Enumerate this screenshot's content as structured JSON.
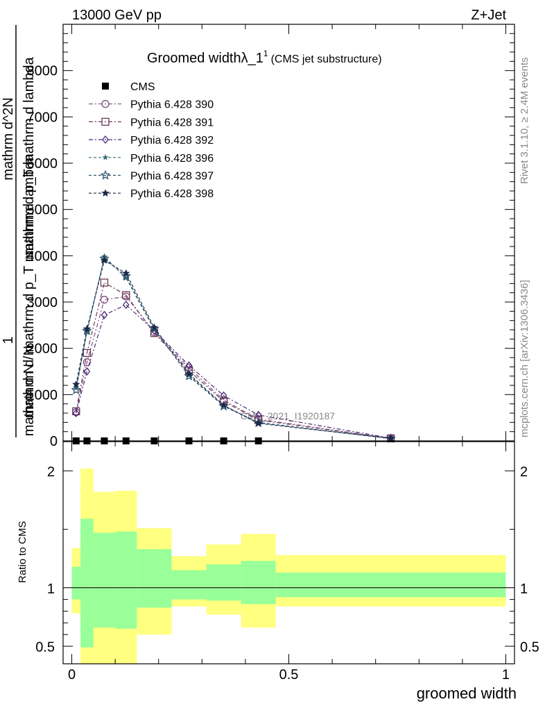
{
  "header": {
    "left": "13000 GeV pp",
    "right": "Z+Jet"
  },
  "side_labels": {
    "rivet": "Rivet 3.1.10, ≥ 2.4M events",
    "mcplots": "mcplots.cern.ch [arXiv:1306.3436]"
  },
  "watermark": "CMS_2021_I1920187",
  "title": {
    "main": "Groomed widthλ_1",
    "sup": "1",
    "sub": "(CMS jet substructure)"
  },
  "colors": {
    "band_outer": "#ffff80",
    "band_inner": "#99ff99",
    "p390": "#7e4f7e",
    "p391": "#6b3a55",
    "p392": "#4b2a78",
    "p396": "#3d6b7a",
    "p397": "#2f5570",
    "p398": "#1b2a48",
    "data": "#000000"
  },
  "chart_data": [
    {
      "type": "line",
      "panel": "main",
      "title": "Groomed widthλ_1^1 (CMS jet substructure)",
      "ylabel": {
        "fraction_num": "1",
        "fraction_den": "mathrm d N",
        "middle": "mathrm d^2N",
        "middle_den": "mathrm d p_T mathrm d lambda",
        "denominator": "mathrm d N / mathrm d p_T mathrm d lambda"
      },
      "xlim": [
        -0.02,
        1.02
      ],
      "ylim": [
        0,
        9000
      ],
      "yticks": [
        0,
        1000,
        2000,
        3000,
        4000,
        5000,
        6000,
        7000,
        8000
      ],
      "ytick_labels": [
        "0",
        "1000",
        "2000",
        "3000",
        "4000",
        "5000",
        "6000",
        "7000",
        "8000"
      ],
      "legend_position": "top-left",
      "series": [
        {
          "name": "CMS",
          "marker": "square",
          "x": [
            0.01,
            0.035,
            0.075,
            0.125,
            0.19,
            0.27,
            0.35,
            0.43
          ],
          "y": [
            0,
            0,
            0,
            0,
            0,
            0,
            0,
            0
          ]
        },
        {
          "name": "Pythia 6.428 390",
          "marker": "circle-open",
          "color": "#7e4f7e",
          "x": [
            0.01,
            0.035,
            0.075,
            0.125,
            0.19,
            0.27,
            0.35,
            0.43,
            0.735
          ],
          "y": [
            620,
            1700,
            3050,
            3120,
            2350,
            1580,
            880,
            470,
            55
          ]
        },
        {
          "name": "Pythia 6.428 391",
          "marker": "square-open",
          "color": "#6b3a55",
          "x": [
            0.01,
            0.035,
            0.075,
            0.125,
            0.19,
            0.27,
            0.35,
            0.43,
            0.735
          ],
          "y": [
            640,
            1900,
            3420,
            3150,
            2330,
            1520,
            850,
            450,
            55
          ]
        },
        {
          "name": "Pythia 6.428 392",
          "marker": "diamond-open",
          "color": "#4b2a78",
          "x": [
            0.01,
            0.035,
            0.075,
            0.125,
            0.19,
            0.27,
            0.35,
            0.43,
            0.735
          ],
          "y": [
            600,
            1500,
            2720,
            2940,
            2380,
            1630,
            980,
            560,
            60
          ]
        },
        {
          "name": "Pythia 6.428 396",
          "marker": "star-small",
          "color": "#3d6b7a",
          "x": [
            0.01,
            0.035,
            0.075,
            0.125,
            0.19,
            0.27,
            0.35,
            0.43,
            0.735
          ],
          "y": [
            1150,
            2350,
            3980,
            3520,
            2400,
            1420,
            760,
            400,
            50
          ]
        },
        {
          "name": "Pythia 6.428 397",
          "marker": "star-open",
          "color": "#2f5570",
          "x": [
            0.01,
            0.035,
            0.075,
            0.125,
            0.19,
            0.27,
            0.35,
            0.43,
            0.735
          ],
          "y": [
            1100,
            2380,
            3940,
            3560,
            2420,
            1400,
            750,
            390,
            50
          ]
        },
        {
          "name": "Pythia 6.428 398",
          "marker": "triangle-down",
          "color": "#1b2a48",
          "x": [
            0.01,
            0.035,
            0.075,
            0.125,
            0.19,
            0.27,
            0.35,
            0.43,
            0.735
          ],
          "y": [
            1220,
            2420,
            3900,
            3620,
            2450,
            1450,
            770,
            380,
            55
          ]
        }
      ]
    },
    {
      "type": "area",
      "panel": "ratio",
      "ylabel": "Ratio to CMS",
      "xlabel": "groomed width",
      "xlim": [
        -0.02,
        1.02
      ],
      "ylim": [
        0.35,
        2.25
      ],
      "yticks": [
        0.5,
        1,
        2
      ],
      "ytick_labels": [
        "0.5",
        "1",
        "2"
      ],
      "xticks": [
        0,
        0.5,
        1
      ],
      "xtick_labels": [
        "0",
        "0.5",
        "1"
      ],
      "bins": [
        {
          "x0": 0.0,
          "x1": 0.02,
          "inner": [
            0.9,
            1.18
          ],
          "outer": [
            0.78,
            1.34
          ]
        },
        {
          "x0": 0.02,
          "x1": 0.05,
          "inner": [
            0.49,
            1.59
          ],
          "outer": [
            0.35,
            2.02
          ]
        },
        {
          "x0": 0.05,
          "x1": 0.1,
          "inner": [
            0.66,
            1.47
          ],
          "outer": [
            0.35,
            1.82
          ]
        },
        {
          "x0": 0.1,
          "x1": 0.15,
          "inner": [
            0.65,
            1.48
          ],
          "outer": [
            0.35,
            1.83
          ]
        },
        {
          "x0": 0.15,
          "x1": 0.23,
          "inner": [
            0.83,
            1.33
          ],
          "outer": [
            0.6,
            1.51
          ]
        },
        {
          "x0": 0.23,
          "x1": 0.31,
          "inner": [
            0.9,
            1.15
          ],
          "outer": [
            0.84,
            1.27
          ]
        },
        {
          "x0": 0.31,
          "x1": 0.39,
          "inner": [
            0.89,
            1.2
          ],
          "outer": [
            0.77,
            1.37
          ]
        },
        {
          "x0": 0.39,
          "x1": 0.47,
          "inner": [
            0.86,
            1.23
          ],
          "outer": [
            0.66,
            1.46
          ]
        },
        {
          "x0": 0.47,
          "x1": 1.0,
          "inner": [
            0.92,
            1.13
          ],
          "outer": [
            0.84,
            1.28
          ]
        }
      ],
      "reference": 1
    }
  ]
}
